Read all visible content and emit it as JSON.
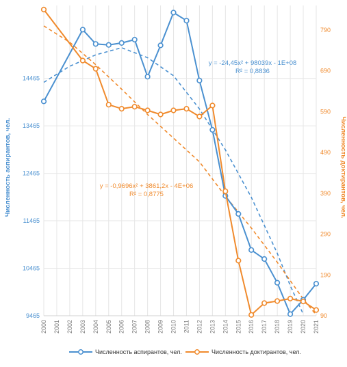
{
  "chart_data": {
    "type": "line",
    "title": "",
    "x": [
      "2000",
      "2001",
      "2002",
      "2003",
      "2004",
      "2005",
      "2006",
      "2007",
      "2008",
      "2009",
      "2010",
      "2011",
      "2012",
      "2013",
      "2014",
      "2015",
      "2016",
      "2017",
      "2018",
      "2019",
      "2020",
      "2021"
    ],
    "series": [
      {
        "name": "Численность аспирантов, чел.",
        "axis": "left",
        "color": "#4a90d0",
        "values": [
          13980,
          null,
          null,
          15490,
          15190,
          15170,
          15210,
          15280,
          14500,
          15160,
          15850,
          15680,
          14420,
          13380,
          11990,
          11610,
          10850,
          10660,
          10160,
          9500,
          9800,
          10140
        ]
      },
      {
        "name": "Численность доктирантов, чел.",
        "axis": "right",
        "color": "#f08a2c",
        "values": [
          840,
          null,
          null,
          715,
          695,
          607,
          597,
          602,
          593,
          583,
          593,
          597,
          578,
          605,
          395,
          225,
          92,
          121,
          126,
          132,
          125,
          104
        ]
      }
    ],
    "trendlines": [
      {
        "series": "Численность аспирантов, чел.",
        "equation": "y = -24,45x² + 98039x - 1E+08",
        "r2": "R² = 0,8836",
        "color": "#4a90d0",
        "points": [
          [
            2000,
            14380
          ],
          [
            2002,
            14720
          ],
          [
            2004,
            14960
          ],
          [
            2006,
            15110
          ],
          [
            2008,
            14900
          ],
          [
            2010,
            14520
          ],
          [
            2012,
            13820
          ],
          [
            2014,
            12960
          ],
          [
            2016,
            11960
          ],
          [
            2018,
            10780
          ],
          [
            2019,
            10100
          ],
          [
            2020,
            9500
          ]
        ]
      },
      {
        "series": "Численность доктирантов, чел.",
        "equation": "y = -0,9696x² + 3861,2x - 4E+06",
        "r2": "R² = 0,8775",
        "color": "#f08a2c",
        "points": [
          [
            2000,
            800
          ],
          [
            2002,
            760
          ],
          [
            2004,
            705
          ],
          [
            2006,
            645
          ],
          [
            2008,
            583
          ],
          [
            2010,
            525
          ],
          [
            2012,
            467
          ],
          [
            2014,
            383
          ],
          [
            2016,
            305
          ],
          [
            2018,
            221
          ],
          [
            2020,
            131
          ],
          [
            2021,
            92
          ]
        ]
      }
    ],
    "y_left": {
      "label": "Численность аспирантов, чел.",
      "ticks": [
        "9465",
        "10465",
        "11465",
        "12465",
        "13465",
        "14465"
      ],
      "ylim": [
        9465,
        16000
      ]
    },
    "y_right": {
      "label": "Численность доктирантов, чел.",
      "ticks": [
        "90",
        "190",
        "290",
        "390",
        "490",
        "590",
        "690",
        "790"
      ],
      "ylim": [
        90,
        850
      ]
    },
    "grid": true,
    "legend_position": "bottom"
  }
}
